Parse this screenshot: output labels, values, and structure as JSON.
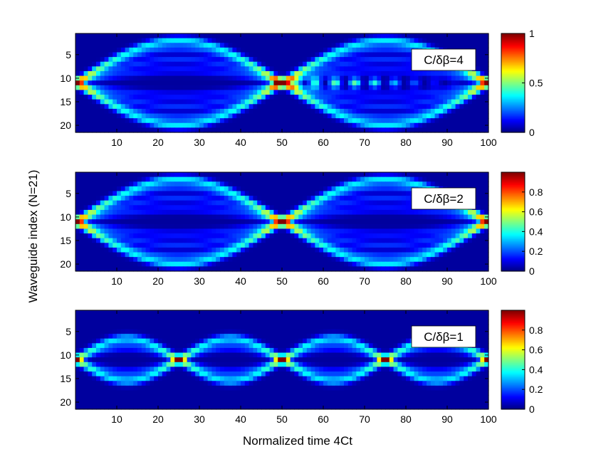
{
  "chart_data": {
    "type": "heatmap",
    "x_label": "Normalized time 4Ct",
    "y_label": "Waveguide index (N=21)",
    "x_ticks": [
      10,
      20,
      30,
      40,
      50,
      60,
      70,
      80,
      90,
      100
    ],
    "y_ticks": [
      5,
      10,
      15,
      20
    ],
    "xlim": [
      0,
      100
    ],
    "ylim": [
      1,
      21
    ],
    "waveguides": 21,
    "time_samples": 100,
    "input_waveguide": 11,
    "panels": [
      {
        "annotation": "C/δβ=4",
        "ratio": 4,
        "period": 50,
        "colorbar": {
          "min": 0,
          "max": 1,
          "ticks": [
            0,
            0.5,
            1
          ],
          "tick_labels": [
            "0",
            "0.5",
            "1"
          ]
        }
      },
      {
        "annotation": "C/δβ=2",
        "ratio": 2,
        "period": 50,
        "colorbar": {
          "min": 0,
          "max": 1,
          "ticks": [
            0,
            0.2,
            0.4,
            0.6,
            0.8
          ],
          "tick_labels": [
            "0",
            "0.2",
            "0.4",
            "0.6",
            "0.8"
          ]
        }
      },
      {
        "annotation": "C/δβ=1",
        "ratio": 1,
        "period": 25,
        "colorbar": {
          "min": 0,
          "max": 1,
          "ticks": [
            0,
            0.2,
            0.4,
            0.6,
            0.8
          ],
          "tick_labels": [
            "0",
            "0.2",
            "0.4",
            "0.6",
            "0.8"
          ]
        }
      }
    ]
  }
}
